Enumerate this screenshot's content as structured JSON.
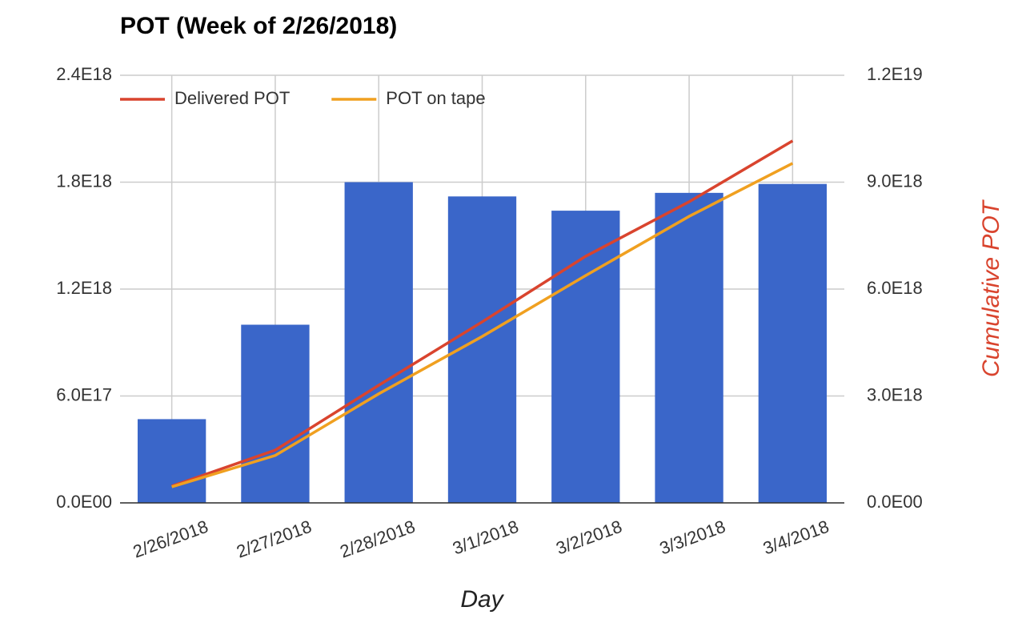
{
  "chart_data": {
    "type": "bar-line",
    "title": "POT (Week of 2/26/2018)",
    "x_label": "Day",
    "y2_label": "Cumulative POT",
    "categories": [
      "2/26/2018",
      "2/27/2018",
      "2/28/2018",
      "3/1/2018",
      "3/2/2018",
      "3/3/2018",
      "3/4/2018"
    ],
    "values": [
      4.7e+17,
      1e+18,
      1.8e+18,
      1.72e+18,
      1.64e+18,
      1.74e+18,
      1.79e+18
    ],
    "color": "#3a66c9",
    "series": [
      {
        "name": "Delivered POT",
        "color": "#d9442e",
        "axis": "y2",
        "values": [
          4.7e+17,
          1.48e+18,
          3.3e+18,
          5.08e+18,
          6.92e+18,
          8.45e+18,
          1.016e+19
        ]
      },
      {
        "name": "POT on tape",
        "color": "#f0a020",
        "axis": "y2",
        "values": [
          4.5e+17,
          1.33e+18,
          3.06e+18,
          4.67e+18,
          6.38e+18,
          8.04e+18,
          9.53e+18
        ]
      }
    ],
    "ylim": [
      0,
      2.4e+18
    ],
    "yticks": [
      {
        "value": 0,
        "label": "0.0E00"
      },
      {
        "value": 6e+17,
        "label": "6.0E17"
      },
      {
        "value": 1.2e+18,
        "label": "1.2E18"
      },
      {
        "value": 1.8e+18,
        "label": "1.8E18"
      },
      {
        "value": 2.4e+18,
        "label": "2.4E18"
      }
    ],
    "y2lim": [
      0,
      1.2e+19
    ],
    "y2ticks": [
      {
        "value": 0,
        "label": "0.0E00"
      },
      {
        "value": 3e+18,
        "label": "3.0E18"
      },
      {
        "value": 6e+18,
        "label": "6.0E18"
      },
      {
        "value": 9e+18,
        "label": "9.0E18"
      },
      {
        "value": 1.2e+19,
        "label": "1.2E19"
      }
    ],
    "grid": true,
    "legend": "top-left"
  }
}
